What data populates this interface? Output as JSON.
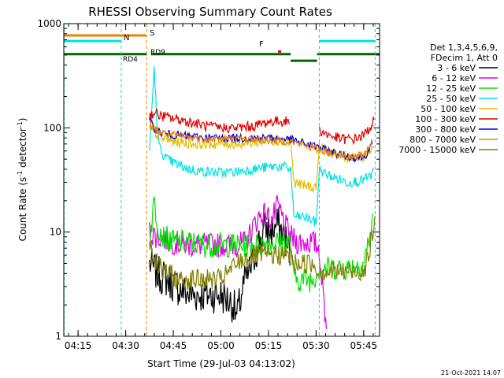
{
  "chart_data": {
    "type": "line",
    "title": "RHESSI Observing Summary Count Rates",
    "xlabel": "Start Time (29-Jul-03 04:13:02)",
    "ylabel_main": "Count Rate (s",
    "ylabel_sup1": "-1",
    "ylabel_mid": " detector",
    "ylabel_sup2": "-1",
    "ylabel_end": ")",
    "y_scale": "log",
    "ylim": [
      1,
      1000
    ],
    "xlim_minutes": [
      250.5,
      350.0
    ],
    "x_ticks": [
      {
        "label": "04:15",
        "min": 255
      },
      {
        "label": "04:30",
        "min": 270
      },
      {
        "label": "04:45",
        "min": 285
      },
      {
        "label": "05:00",
        "min": 300
      },
      {
        "label": "05:15",
        "min": 315
      },
      {
        "label": "05:30",
        "min": 330
      },
      {
        "label": "05:45",
        "min": 345
      }
    ],
    "y_ticks": [
      {
        "label": "1",
        "v": 1
      },
      {
        "label": "10",
        "v": 10
      },
      {
        "label": "100",
        "v": 100
      },
      {
        "label": "1000",
        "v": 1000
      }
    ],
    "legend": {
      "placement": "right",
      "header": [
        "Det 1,3,4,5,6,9,",
        "FDecim 1, Att 0"
      ],
      "entries": [
        {
          "label": "3 - 6 keV",
          "color": "#000000"
        },
        {
          "label": "6 - 12 keV",
          "color": "#e000e0"
        },
        {
          "label": "12 - 25 keV",
          "color": "#00e000"
        },
        {
          "label": "25 - 50 keV",
          "color": "#00e0e0"
        },
        {
          "label": "50 - 100 keV",
          "color": "#e0c000"
        },
        {
          "label": "100 - 300 keV",
          "color": "#e00000"
        },
        {
          "label": "300 - 800 keV",
          "color": "#0000e0"
        },
        {
          "label": "800 - 7000 keV",
          "color": "#f08000"
        },
        {
          "label": "7000 - 15000 keV",
          "color": "#808000"
        }
      ]
    },
    "state_bars": [
      {
        "name": "S",
        "label": "S",
        "color": "#f08000",
        "level": 770,
        "segments": [
          [
            250.5,
            276.5
          ]
        ]
      },
      {
        "name": "N",
        "label": "N",
        "color": "#00e0e0",
        "level": 680,
        "segments": [
          [
            250.5,
            268.5
          ],
          [
            331.0,
            348.5
          ]
        ]
      },
      {
        "name": "SAA",
        "label": "",
        "color": "#006400",
        "level": 510,
        "segments": [
          [
            250.5,
            276.7
          ],
          [
            278.0,
            322.0
          ],
          [
            330.3,
            350.0
          ]
        ]
      },
      {
        "name": "SAA-low",
        "label": "",
        "color": "#006400",
        "level": 440,
        "segments": [
          [
            322.0,
            330.3
          ]
        ]
      },
      {
        "name": "F",
        "label": "F",
        "color": "#e00000",
        "level": 540,
        "segments": [
          [
            318.0,
            319.0
          ]
        ]
      }
    ],
    "state_labels": [
      {
        "text": "S",
        "color": "#f08000"
      },
      {
        "text": "N",
        "color": "#00e0e0"
      },
      {
        "text": "RD4",
        "color": "#006400"
      },
      {
        "text": "RD9",
        "color": "#006400"
      },
      {
        "text": "F",
        "color": "#e00000"
      }
    ],
    "vlines": [
      {
        "min": 250.6,
        "color": "#00e0e0"
      },
      {
        "min": 268.6,
        "color": "#00e0e0"
      },
      {
        "min": 276.6,
        "color": "#f08000"
      },
      {
        "min": 331.0,
        "color": "#00e0e0"
      },
      {
        "min": 348.6,
        "color": "#00e0e0"
      }
    ],
    "series": [
      {
        "name": "3 - 6 keV",
        "color": "#000000",
        "noise": 0.18,
        "x": [
          277.5,
          280,
          283,
          286,
          290,
          295,
          300,
          304,
          305,
          307,
          310,
          312,
          314,
          316,
          318,
          320,
          322
        ],
        "y": [
          5,
          4,
          3.5,
          3,
          2.5,
          2.5,
          2.5,
          2,
          1.5,
          3,
          5,
          8,
          11,
          10,
          12,
          9,
          6
        ]
      },
      {
        "name": "6 - 12 keV",
        "color": "#e000e0",
        "noise": 0.12,
        "x": [
          277.5,
          280,
          285,
          290,
          295,
          300,
          305,
          308,
          310,
          312,
          314,
          316,
          318,
          320,
          322,
          324,
          327,
          329,
          331,
          332,
          333.5
        ],
        "y": [
          10,
          9,
          8,
          7.5,
          7.5,
          7.5,
          7.5,
          8,
          11,
          14,
          15,
          13,
          18,
          12,
          9,
          8,
          8,
          8,
          7,
          3,
          1
        ]
      },
      {
        "name": "12 - 25 keV",
        "color": "#00e000",
        "noise": 0.12,
        "x": [
          277.5,
          279,
          280,
          282,
          285,
          290,
          295,
          300,
          305,
          310,
          315,
          320,
          322,
          323,
          326,
          329,
          331,
          335,
          340,
          345,
          348
        ],
        "y": [
          8,
          20,
          12,
          9,
          8,
          8,
          7.5,
          7.5,
          7.5,
          7.5,
          8,
          8,
          8,
          3.5,
          3.5,
          3.5,
          4.5,
          4.5,
          4.5,
          5,
          13
        ]
      },
      {
        "name": "25 - 50 keV",
        "color": "#00e0e0",
        "noise": 0.05,
        "x": [
          277.5,
          279,
          280,
          281,
          283,
          286,
          290,
          295,
          300,
          305,
          310,
          315,
          318,
          320,
          322,
          323,
          326,
          329,
          330,
          331,
          333,
          336,
          340,
          344,
          347,
          348.5
        ],
        "y": [
          60,
          380,
          90,
          60,
          50,
          45,
          40,
          38,
          37,
          38,
          40,
          42,
          43,
          42,
          40,
          14,
          14,
          13,
          12,
          40,
          36,
          33,
          30,
          31,
          34,
          40
        ]
      },
      {
        "name": "50 - 100 keV",
        "color": "#e0c000",
        "noise": 0.05,
        "x": [
          277.5,
          279,
          281,
          284,
          288,
          292,
          296,
          300,
          305,
          310,
          315,
          318,
          320,
          322,
          323,
          326,
          329,
          330,
          331,
          333,
          336,
          340,
          343,
          346,
          348.5
        ],
        "y": [
          100,
          90,
          80,
          75,
          72,
          70,
          70,
          70,
          70,
          72,
          75,
          76,
          75,
          74,
          30,
          28,
          27,
          27,
          65,
          60,
          55,
          52,
          51,
          55,
          70
        ]
      },
      {
        "name": "100 - 300 keV",
        "color": "#e00000",
        "noise": 0.05,
        "x": [
          277.5,
          279,
          281,
          284,
          288,
          292,
          296,
          300,
          305,
          310,
          313,
          316,
          319,
          321,
          322,
          323,
          325,
          328,
          331,
          334,
          338,
          342,
          345,
          347,
          348.5
        ],
        "y": [
          130,
          140,
          130,
          125,
          118,
          110,
          103,
          100,
          100,
          103,
          110,
          115,
          116,
          115,
          115,
          0,
          0,
          0,
          95,
          85,
          78,
          78,
          85,
          100,
          125
        ]
      },
      {
        "name": "300 - 800 keV",
        "color": "#0000e0",
        "noise": 0.04,
        "x": [
          277.5,
          279,
          281,
          284,
          288,
          292,
          296,
          300,
          305,
          310,
          315,
          318,
          320,
          322,
          331,
          334,
          338,
          342,
          345,
          348
        ],
        "y": [
          115,
          100,
          90,
          86,
          84,
          82,
          80,
          80,
          80,
          80,
          80,
          79,
          78,
          77,
          65,
          60,
          55,
          52,
          52,
          70
        ]
      },
      {
        "name": "800 - 7000 keV",
        "color": "#f08000",
        "noise": 0.04,
        "x": [
          277.5,
          279,
          281,
          284,
          288,
          292,
          296,
          300,
          305,
          310,
          315,
          318,
          320,
          322,
          331,
          334,
          338,
          342,
          345,
          348
        ],
        "y": [
          110,
          100,
          90,
          85,
          82,
          80,
          78,
          78,
          78,
          78,
          76,
          75,
          75,
          74,
          62,
          58,
          55,
          52,
          55,
          78
        ]
      },
      {
        "name": "7000 - 15000 keV",
        "color": "#808000",
        "noise": 0.1,
        "x": [
          277.5,
          278.5,
          280,
          282,
          284,
          286,
          290,
          295,
          300,
          302,
          305,
          310,
          315,
          320,
          322,
          323,
          326,
          329,
          331,
          335,
          340,
          345,
          346.5,
          348,
          348.8
        ],
        "y": [
          9,
          6,
          5,
          4,
          4,
          3.5,
          3.5,
          3.5,
          3.5,
          4,
          5,
          6,
          6,
          6,
          6,
          5,
          5,
          5,
          4.2,
          4.2,
          4.2,
          4.2,
          6,
          10,
          14
        ]
      }
    ]
  },
  "footer": {
    "timestamp": "21-Oct-2021 14:07"
  }
}
